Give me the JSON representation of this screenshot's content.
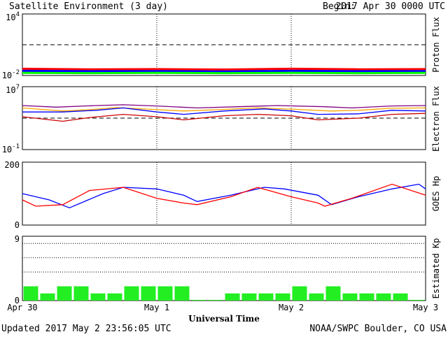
{
  "header": {
    "title": "Satellite Environment (3 day)",
    "begin_label": "Begin:",
    "begin_value": "2017 Apr 30 0000 UTC"
  },
  "footer": {
    "updated": "Updated 2017 May  2 23:56:05 UTC",
    "credit": "NOAA/SWPC Boulder, CO USA",
    "xlabel": "Universal Time"
  },
  "chart_data": [
    {
      "type": "line",
      "ylabel": "Proton Flux",
      "yscale": "log",
      "ylim": [
        0.01,
        10000
      ],
      "ytick_labels": [
        {
          "base": "10",
          "exp": "4"
        },
        {
          "base": "10",
          "exp": "-2"
        }
      ],
      "threshold": 10,
      "x_categories": [
        "Apr 30",
        "May 1",
        "May 2",
        "May 3"
      ],
      "series": [
        {
          "color": "#ff0000",
          "x_days": [
            0,
            0.5,
            1,
            1.5,
            2,
            2.5,
            3
          ],
          "values": [
            0.045,
            0.04,
            0.042,
            0.038,
            0.045,
            0.04,
            0.042
          ]
        },
        {
          "color": "#0000ff",
          "x_days": [
            0,
            0.5,
            1,
            1.5,
            2,
            2.5,
            3
          ],
          "values": [
            0.028,
            0.026,
            0.027,
            0.025,
            0.028,
            0.026,
            0.027
          ]
        },
        {
          "color": "#00ff00",
          "x_days": [
            0,
            0.5,
            1,
            1.5,
            2,
            2.5,
            3
          ],
          "values": [
            0.018,
            0.017,
            0.018,
            0.017,
            0.018,
            0.017,
            0.018
          ]
        }
      ]
    },
    {
      "type": "line",
      "ylabel": "Electron Flux",
      "yscale": "log",
      "ylim": [
        0.1,
        10000000
      ],
      "ytick_labels": [
        {
          "base": "10",
          "exp": "7"
        },
        {
          "base": "10",
          "exp": "-1"
        }
      ],
      "threshold": 1000,
      "series": [
        {
          "color": "#800080",
          "x_days": [
            0,
            0.25,
            0.55,
            0.75,
            1.0,
            1.3,
            1.6,
            1.9,
            2.25,
            2.45,
            2.75,
            3.0
          ],
          "values": [
            40000,
            25000,
            40000,
            50000,
            35000,
            20000,
            28000,
            40000,
            28000,
            20000,
            35000,
            40000
          ]
        },
        {
          "color": "#ffa500",
          "x_days": [
            0,
            0.3,
            0.5,
            0.7,
            1.0,
            1.2,
            1.5,
            1.75,
            2.0,
            2.3,
            2.5,
            2.75,
            3.0
          ],
          "values": [
            20000,
            8000,
            12000,
            22000,
            12000,
            8000,
            13000,
            20000,
            14000,
            8000,
            10000,
            18000,
            20000
          ]
        },
        {
          "color": "#0000ff",
          "x_days": [
            0,
            0.3,
            0.55,
            0.75,
            1.0,
            1.2,
            1.5,
            1.8,
            2.0,
            2.2,
            2.5,
            2.75,
            3.0
          ],
          "values": [
            6000,
            6000,
            10000,
            20000,
            6000,
            3000,
            8000,
            15000,
            8000,
            3000,
            3500,
            10000,
            8000
          ]
        },
        {
          "color": "#cc0000",
          "x_days": [
            0,
            0.3,
            0.5,
            0.75,
            1.0,
            1.2,
            1.5,
            1.75,
            2.0,
            2.2,
            2.5,
            2.75,
            3.0
          ],
          "values": [
            1500,
            400,
            1200,
            3000,
            1500,
            600,
            2000,
            3000,
            2000,
            600,
            1000,
            3000,
            4000
          ]
        }
      ]
    },
    {
      "type": "line",
      "ylabel": "GOES Hp",
      "ylim": [
        0,
        200
      ],
      "ytick_labels": [
        "200",
        "0"
      ],
      "series": [
        {
          "color": "#0000ff",
          "x_days": [
            0,
            0.2,
            0.35,
            0.6,
            0.75,
            1.0,
            1.2,
            1.3,
            1.55,
            1.8,
            1.95,
            2.2,
            2.3,
            2.5,
            2.75,
            2.95,
            3.0
          ],
          "values": [
            100,
            80,
            55,
            100,
            120,
            115,
            95,
            75,
            95,
            120,
            115,
            95,
            65,
            90,
            115,
            130,
            115
          ]
        },
        {
          "color": "#ff0000",
          "x_days": [
            0,
            0.1,
            0.3,
            0.5,
            0.75,
            1.0,
            1.2,
            1.3,
            1.55,
            1.75,
            2.0,
            2.2,
            2.25,
            2.45,
            2.75,
            3.0
          ],
          "values": [
            80,
            60,
            65,
            110,
            120,
            85,
            70,
            65,
            90,
            120,
            90,
            70,
            60,
            85,
            130,
            95
          ]
        }
      ]
    },
    {
      "type": "bar",
      "ylabel": "Estimated Kp",
      "ylim": [
        0,
        9
      ],
      "ytick_labels": [
        "9",
        "0"
      ],
      "gridlines": [
        4,
        6,
        8
      ],
      "color": "#22ee22",
      "values": [
        2,
        1,
        2,
        2,
        1,
        1,
        2,
        2,
        2,
        2,
        0.1,
        0.1,
        1,
        1,
        1,
        1,
        2,
        1,
        2,
        1,
        1,
        1,
        1,
        0.1
      ]
    }
  ]
}
